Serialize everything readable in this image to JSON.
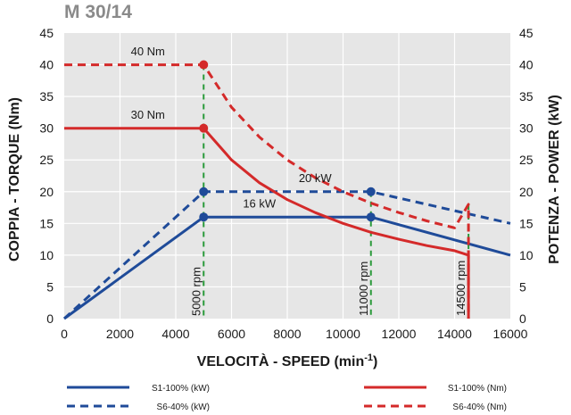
{
  "chart_data": {
    "type": "line",
    "title": "M 30/14",
    "xlabel": "VELOCITÀ - SPEED (min",
    "xlabel_sup": "-1",
    "xlabel_end": ")",
    "ylabel_left": "COPPIA - TORQUE (Nm)",
    "ylabel_right": "POTENZA - POWER (kW)",
    "xlim": [
      0,
      16000
    ],
    "ylim": [
      0,
      45
    ],
    "x_ticks": [
      "0",
      "2000",
      "4000",
      "6000",
      "8000",
      "10000",
      "12000",
      "14000",
      "16000"
    ],
    "x_tick_values": [
      0,
      2000,
      4000,
      6000,
      8000,
      10000,
      12000,
      14000,
      16000
    ],
    "y_ticks": [
      "0",
      "5",
      "10",
      "15",
      "20",
      "25",
      "30",
      "35",
      "40",
      "45"
    ],
    "y_tick_values": [
      0,
      5,
      10,
      15,
      20,
      25,
      30,
      35,
      40,
      45
    ],
    "grid": true,
    "colors": {
      "blue": "#1f4b99",
      "red": "#d42a2a",
      "green": "#2a9a3a",
      "grid": "#ffffff",
      "plot_bg": "#e6e6e6",
      "title": "#8a8a8a"
    },
    "series": [
      {
        "name": "S1-100% (kW)",
        "color": "#1f4b99",
        "dashed": false,
        "x": [
          0,
          5000,
          11000,
          16000
        ],
        "y": [
          0,
          16,
          16,
          10
        ],
        "markers": [
          5000,
          11000
        ]
      },
      {
        "name": "S6-40% (kW)",
        "color": "#1f4b99",
        "dashed": true,
        "x": [
          0,
          5000,
          11000,
          16000
        ],
        "y": [
          0,
          20,
          20,
          15
        ],
        "markers": [
          5000,
          11000
        ]
      },
      {
        "name": "S1-100% (Nm)",
        "color": "#d42a2a",
        "dashed": false,
        "x": [
          0,
          5000,
          6000,
          7000,
          8000,
          9000,
          10000,
          11000,
          12000,
          13000,
          14000,
          14500,
          14500
        ],
        "y": [
          30,
          30,
          25,
          21.4,
          18.75,
          16.7,
          15,
          13.6,
          12.5,
          11.5,
          10.7,
          10,
          0
        ],
        "markers": [
          5000
        ]
      },
      {
        "name": "S6-40% (Nm)",
        "color": "#d42a2a",
        "dashed": true,
        "x": [
          0,
          5000,
          6000,
          7000,
          8000,
          9000,
          10000,
          11000,
          12000,
          13000,
          14000,
          14500,
          14500
        ],
        "y": [
          40,
          40,
          33.3,
          28.6,
          25,
          22.2,
          20,
          18.2,
          16.7,
          15.4,
          14.3,
          18,
          0
        ],
        "markers": [
          5000
        ]
      }
    ],
    "annotations": [
      {
        "text": "40 Nm",
        "x": 3000,
        "y": 41.5
      },
      {
        "text": "30 Nm",
        "x": 3000,
        "y": 31.5
      },
      {
        "text": "20 kW",
        "x": 9000,
        "y": 21.5
      },
      {
        "text": "16 kW",
        "x": 7000,
        "y": 17.5
      }
    ],
    "vlines": [
      {
        "x": 5000,
        "y_top": 40,
        "label": "5000 rpm"
      },
      {
        "x": 11000,
        "y_top": 20,
        "label": "11000 rpm"
      },
      {
        "x": 14500,
        "y_top": 18,
        "label": "14500 rpm"
      }
    ],
    "legend": [
      {
        "label": "S1-100% (kW)",
        "color": "#1f4b99",
        "dashed": false
      },
      {
        "label": "S1-100% (Nm)",
        "color": "#d42a2a",
        "dashed": false
      },
      {
        "label": "S6-40% (kW)",
        "color": "#1f4b99",
        "dashed": true
      },
      {
        "label": "S6-40% (Nm)",
        "color": "#d42a2a",
        "dashed": true
      }
    ],
    "legend_placement": "bottom"
  }
}
